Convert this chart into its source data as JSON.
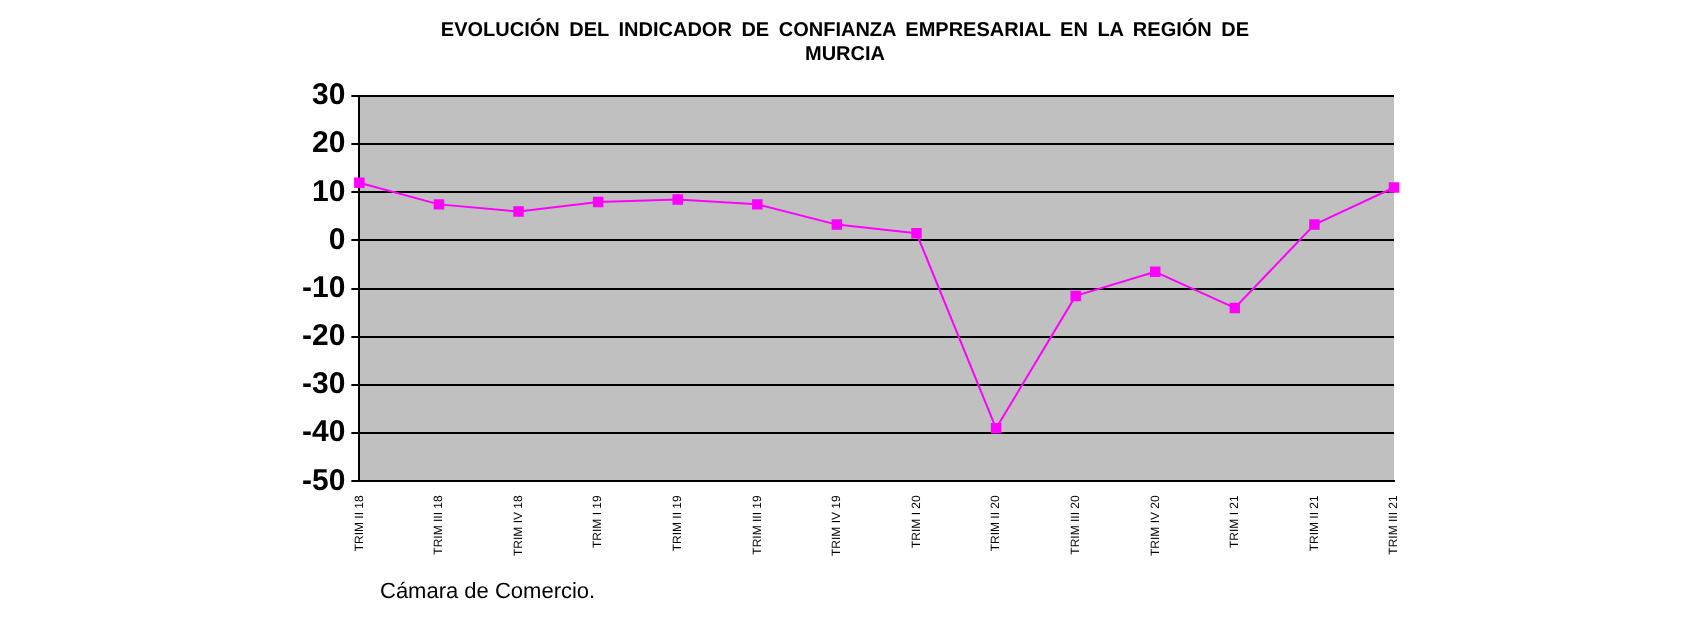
{
  "chart_data": {
    "type": "line",
    "title": "EVOLUCIÓN DEL INDICADOR DE CONFIANZA EMPRESARIAL EN LA REGIÓN DE MURCIA",
    "categories": [
      "TRIM II 18",
      "TRIM III 18",
      "TRIM IV 18",
      "TRIM I 19",
      "TRIM II 19",
      "TRIM III 19",
      "TRIM IV 19",
      "TRIM I 20",
      "TRIM II 20",
      "TRIM III 20",
      "TRIM IV 20",
      "TRIM I 21",
      "TRIM II 21",
      "TRIM III 21"
    ],
    "series": [
      {
        "color": "#ff00ff",
        "values": [
          12,
          7.5,
          6,
          8,
          8.5,
          7.5,
          3.3,
          1.5,
          -39,
          -11.5,
          -6.5,
          -14,
          3.3,
          11
        ]
      }
    ],
    "ylim": [
      -50,
      30
    ],
    "yticks": [
      -50,
      -40,
      -30,
      -20,
      -10,
      0,
      10,
      20,
      30
    ],
    "grid": "y",
    "legend": false,
    "marker": "square",
    "line_style": "solid",
    "annotations": [
      "Cámara de Comercio."
    ]
  }
}
